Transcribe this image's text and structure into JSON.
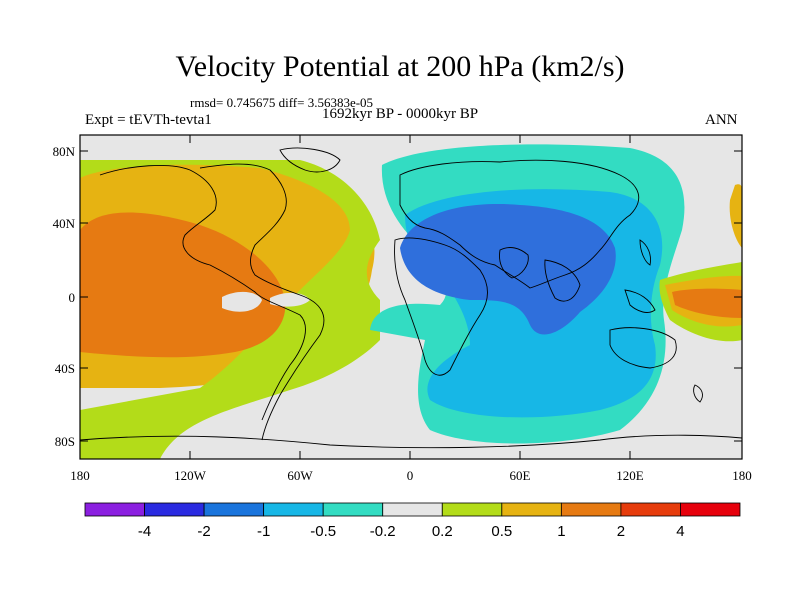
{
  "title": "Velocity Potential at 200 hPa (km2/s)",
  "stats": "rmsd= 0.745675 diff= 3.56383e-05",
  "experiment": "Expt = tEVTh-tevta1",
  "period": "1692kyr BP - 0000kyr BP",
  "season": "ANN",
  "lat_ticks": [
    "80N",
    "40N",
    "0",
    "40S",
    "80S"
  ],
  "lon_ticks": [
    "180",
    "120W",
    "60W",
    "0",
    "60E",
    "120E",
    "180"
  ],
  "colorbar": {
    "labels": [
      "-4",
      "-2",
      "-1",
      "-0.5",
      "-0.2",
      "0.2",
      "0.5",
      "1",
      "2",
      "4"
    ],
    "colors": [
      "#8b1fe0",
      "#2a2ae0",
      "#1a74dc",
      "#17b7e6",
      "#33dcc2",
      "#e6e6e6",
      "#b3dc19",
      "#e6b312",
      "#e67a12",
      "#e63c0c",
      "#e6000c"
    ]
  },
  "field_colors": {
    "blue": "#2f6fdc",
    "light_blue": "#17b7e6",
    "teal": "#33dcc2",
    "gray": "#e6e6e6",
    "lime": "#b3dc19",
    "gold": "#e6b312",
    "orange": "#e67a12",
    "red_orange": "#e63c0c"
  }
}
